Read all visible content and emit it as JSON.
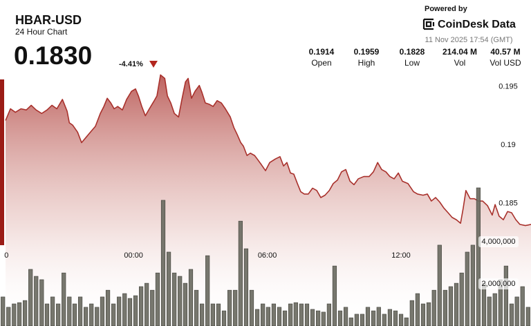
{
  "chart_data": {
    "type": "line",
    "title": "HBAR-USD",
    "subtitle": "24 Hour Chart",
    "price": "0.1830",
    "change": "-4.41%",
    "powered_by": "Powered by",
    "brand": "CoinDesk Data",
    "timestamp": "11 Nov 2025 17:54 (GMT)",
    "stats": [
      {
        "value": "0.1914",
        "label": "Open"
      },
      {
        "value": "0.1959",
        "label": "High"
      },
      {
        "value": "0.1828",
        "label": "Low"
      },
      {
        "value": "214.04 M",
        "label": "Vol"
      },
      {
        "value": "40.57 M",
        "label": "Vol USD"
      }
    ],
    "xlim": [
      -5.99,
      17.83
    ],
    "xticks": [
      {
        "value": -5.7,
        "label": "0"
      },
      {
        "value": 0,
        "label": "00:00"
      },
      {
        "value": 6,
        "label": "06:00"
      },
      {
        "value": 12,
        "label": "12:00"
      }
    ],
    "ylim": [
      0.1745,
      0.1965
    ],
    "yticks": [
      0.195,
      0.19,
      0.185
    ],
    "y2lim": [
      0,
      12200000
    ],
    "y2ticks": [
      {
        "value": 4000000,
        "label": "4,000,000"
      },
      {
        "value": 2000000,
        "label": "2,000,000"
      }
    ],
    "series": [
      {
        "type": "line",
        "color": "#a8302b",
        "x": [
          -5.74,
          -5.52,
          -5.3,
          -5.05,
          -4.81,
          -4.59,
          -4.37,
          -4.12,
          -3.88,
          -3.66,
          -3.44,
          -3.19,
          -2.98,
          -2.88,
          -2.73,
          -2.51,
          -2.33,
          -2.11,
          -1.89,
          -1.71,
          -1.49,
          -1.33,
          -1.18,
          -1.02,
          -0.87,
          -0.71,
          -0.5,
          -0.31,
          -0.09,
          0.09,
          0.22,
          0.37,
          0.53,
          0.71,
          0.9,
          1.05,
          1.21,
          1.4,
          1.52,
          1.67,
          1.83,
          2.02,
          2.17,
          2.33,
          2.45,
          2.6,
          2.76,
          2.95,
          3.07,
          3.22,
          3.38,
          3.57,
          3.75,
          3.94,
          4.12,
          4.34,
          4.5,
          4.65,
          4.81,
          4.93,
          5.09,
          5.24,
          5.43,
          5.55,
          5.74,
          5.92,
          6.11,
          6.36,
          6.57,
          6.73,
          6.88,
          7.04,
          7.19,
          7.35,
          7.5,
          7.66,
          7.84,
          8.03,
          8.22,
          8.4,
          8.59,
          8.78,
          8.96,
          9.15,
          9.33,
          9.52,
          9.71,
          9.89,
          10.08,
          10.33,
          10.57,
          10.76,
          10.95,
          11.13,
          11.32,
          11.5,
          11.69,
          11.88,
          12.06,
          12.31,
          12.56,
          12.74,
          12.99,
          13.18,
          13.36,
          13.55,
          13.74,
          13.92,
          14.11,
          14.29,
          14.48,
          14.67,
          14.79,
          14.91,
          15.1,
          15.29,
          15.47,
          15.66,
          15.88,
          16.09,
          16.22,
          16.4,
          16.59,
          16.78,
          16.96,
          17.15,
          17.33,
          17.58,
          17.83
        ],
        "values": [
          0.1921,
          0.1931,
          0.1928,
          0.1931,
          0.193,
          0.1934,
          0.193,
          0.1927,
          0.193,
          0.1934,
          0.1931,
          0.1939,
          0.1929,
          0.1919,
          0.1917,
          0.1911,
          0.1902,
          0.1907,
          0.1912,
          0.1916,
          0.1927,
          0.1933,
          0.194,
          0.1936,
          0.1931,
          0.1933,
          0.193,
          0.1939,
          0.1946,
          0.1948,
          0.1942,
          0.1933,
          0.1925,
          0.1931,
          0.1937,
          0.1942,
          0.196,
          0.1957,
          0.1942,
          0.1936,
          0.1927,
          0.1924,
          0.1939,
          0.1954,
          0.1957,
          0.194,
          0.1946,
          0.1951,
          0.1945,
          0.1936,
          0.1935,
          0.1933,
          0.1938,
          0.1936,
          0.1931,
          0.1924,
          0.1915,
          0.1909,
          0.1902,
          0.1899,
          0.1891,
          0.1893,
          0.1891,
          0.1888,
          0.1883,
          0.1878,
          0.1885,
          0.1888,
          0.189,
          0.1882,
          0.1885,
          0.1876,
          0.1875,
          0.1867,
          0.186,
          0.1858,
          0.1858,
          0.1863,
          0.1861,
          0.1855,
          0.1857,
          0.1861,
          0.1867,
          0.187,
          0.1877,
          0.1879,
          0.1869,
          0.1866,
          0.1871,
          0.1873,
          0.1873,
          0.1877,
          0.1885,
          0.1879,
          0.1877,
          0.1873,
          0.1871,
          0.1876,
          0.1869,
          0.1867,
          0.186,
          0.1858,
          0.1857,
          0.1858,
          0.1852,
          0.1855,
          0.1851,
          0.1846,
          0.1842,
          0.1838,
          0.1836,
          0.1833,
          0.1846,
          0.1861,
          0.1854,
          0.1854,
          0.1852,
          0.1852,
          0.1848,
          0.184,
          0.1849,
          0.1839,
          0.1836,
          0.1843,
          0.1842,
          0.1836,
          0.1832,
          0.1831,
          0.1832
        ]
      },
      {
        "type": "bar",
        "axis": "y2",
        "color": "#6b6b62",
        "x": [
          -5.86,
          -5.61,
          -5.36,
          -5.12,
          -4.87,
          -4.62,
          -4.37,
          -4.12,
          -3.88,
          -3.63,
          -3.38,
          -3.13,
          -2.88,
          -2.64,
          -2.39,
          -2.14,
          -1.89,
          -1.64,
          -1.4,
          -1.15,
          -0.9,
          -0.65,
          -0.4,
          -0.16,
          0.09,
          0.34,
          0.59,
          0.84,
          1.08,
          1.33,
          1.58,
          1.83,
          2.08,
          2.32,
          2.57,
          2.82,
          3.07,
          3.32,
          3.56,
          3.81,
          4.06,
          4.31,
          4.56,
          4.8,
          5.05,
          5.3,
          5.55,
          5.8,
          6.04,
          6.29,
          6.54,
          6.79,
          7.04,
          7.28,
          7.53,
          7.78,
          8.03,
          8.28,
          8.52,
          8.77,
          9.02,
          9.27,
          9.52,
          9.76,
          10.01,
          10.26,
          10.51,
          10.76,
          11.0,
          11.25,
          11.5,
          11.75,
          12.0,
          12.24,
          12.49,
          12.74,
          12.99,
          13.24,
          13.48,
          13.73,
          13.98,
          14.23,
          14.48,
          14.72,
          14.97,
          15.22,
          15.47,
          15.72,
          15.96,
          16.21,
          16.46,
          16.71,
          16.96,
          17.2,
          17.45,
          17.7
        ],
        "values": [
          1380000,
          890000,
          1050000,
          1110000,
          1210000,
          2690000,
          2360000,
          2200000,
          1050000,
          1380000,
          1050000,
          2520000,
          1380000,
          1050000,
          1380000,
          890000,
          1050000,
          890000,
          1380000,
          1700000,
          1050000,
          1380000,
          1540000,
          1310000,
          1440000,
          1870000,
          2030000,
          1700000,
          2520000,
          5970000,
          3510000,
          2520000,
          2360000,
          2030000,
          2690000,
          1700000,
          1050000,
          3340000,
          1050000,
          1050000,
          720000,
          1700000,
          1700000,
          4980000,
          3670000,
          1700000,
          790000,
          1050000,
          890000,
          1050000,
          890000,
          720000,
          1050000,
          1110000,
          1050000,
          1050000,
          790000,
          720000,
          660000,
          1050000,
          2850000,
          720000,
          890000,
          390000,
          560000,
          560000,
          890000,
          720000,
          890000,
          560000,
          790000,
          720000,
          560000,
          390000,
          1210000,
          1540000,
          1050000,
          1110000,
          1700000,
          3840000,
          1700000,
          1870000,
          2030000,
          2520000,
          3510000,
          3840000,
          6560000,
          2030000,
          1380000,
          1540000,
          2200000,
          2850000,
          1050000,
          1380000,
          1870000,
          890000
        ]
      }
    ]
  }
}
